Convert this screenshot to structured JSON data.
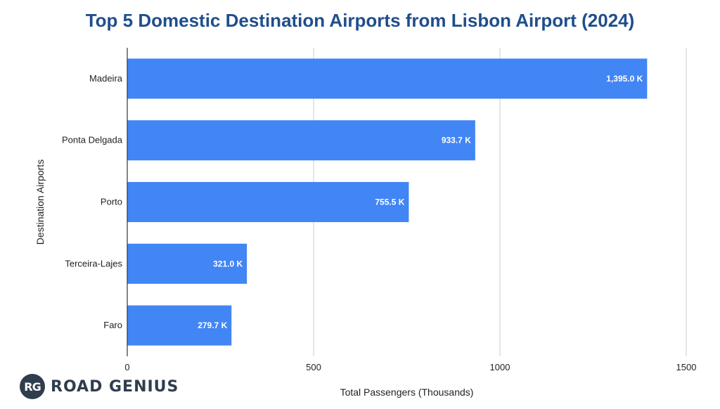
{
  "chart_data": {
    "type": "bar",
    "orientation": "horizontal",
    "title": "Top 5 Domestic Destination Airports from Lisbon Airport (2024)",
    "xlabel": "Total Passengers (Thousands)",
    "ylabel": "Destination Airports",
    "categories": [
      "Madeira",
      "Ponta Delgada",
      "Porto",
      "Terceira-Lajes",
      "Faro"
    ],
    "values": [
      1395.0,
      933.7,
      755.5,
      321.0,
      279.7
    ],
    "data_labels": [
      "1,395.0 K",
      "933.7 K",
      "755.5 K",
      "321.0 K",
      "279.7 K"
    ],
    "xlim": [
      0,
      1500
    ],
    "xticks": [
      0,
      500,
      1000,
      1500
    ],
    "xtick_labels": [
      "0",
      "500",
      "1000",
      "1500"
    ],
    "grid": "vertical",
    "bar_color": "#4285f4"
  },
  "branding": {
    "badge": "RG",
    "name": "ROAD GENIUS"
  }
}
